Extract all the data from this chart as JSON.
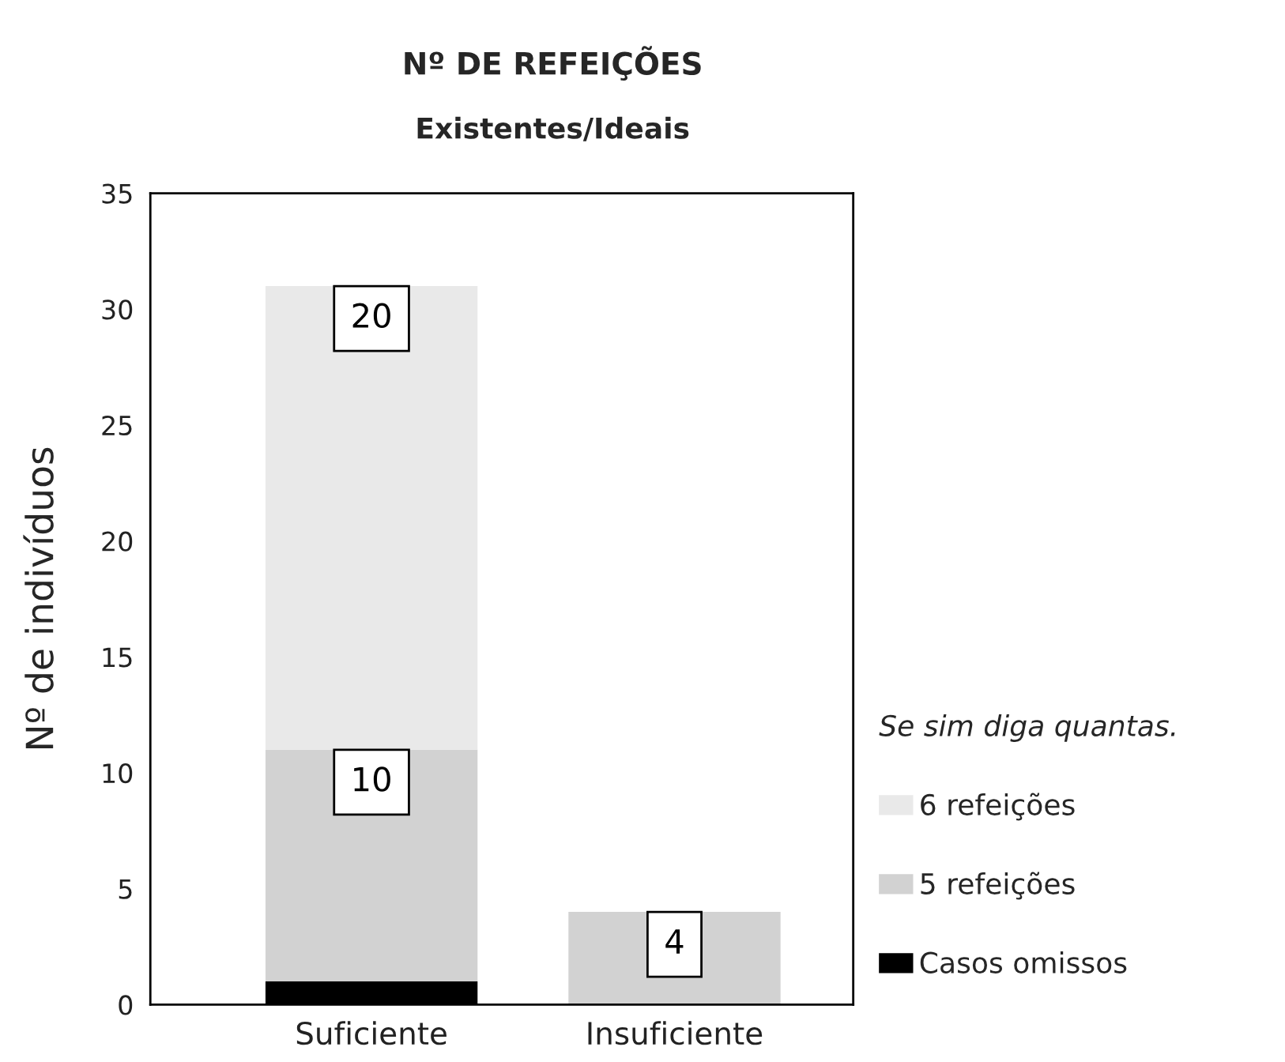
{
  "chart_data": {
    "type": "bar",
    "stacked": true,
    "title": "Nº DE REFEIÇÕES",
    "subtitle": "Existentes/Ideais",
    "ylabel": "Nº de indivíduos",
    "legend_title": "Se sim diga quantas.",
    "categories": [
      "Suficiente",
      "Insuficiente"
    ],
    "series": [
      {
        "name": "Casos omissos",
        "color": "#000000",
        "values": [
          1,
          null
        ],
        "value_labels": [
          null,
          null
        ]
      },
      {
        "name": "5 refeições",
        "color": "#d2d2d2",
        "values": [
          10,
          4
        ],
        "value_labels": [
          "10",
          "4"
        ]
      },
      {
        "name": "6 refeições",
        "color": "#e9e9e9",
        "values": [
          20,
          null
        ],
        "value_labels": [
          "20",
          null
        ]
      }
    ],
    "ylim": [
      0,
      35
    ],
    "yticks": [
      0,
      5,
      10,
      15,
      20,
      25,
      30,
      35
    ],
    "grid": false,
    "legend": "right"
  }
}
